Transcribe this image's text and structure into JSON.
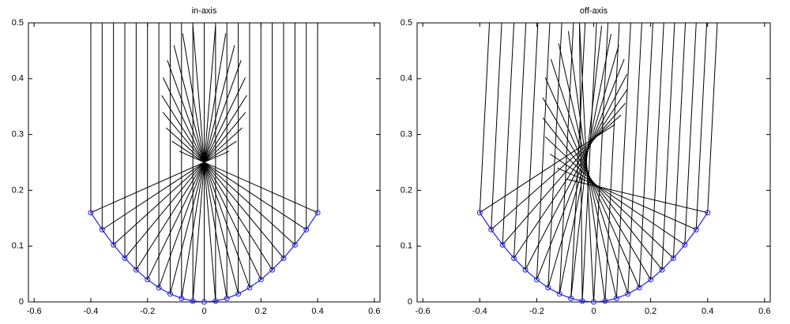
{
  "chart_data": [
    {
      "type": "line",
      "title": "in-axis",
      "xlim": [
        -0.62,
        0.62
      ],
      "ylim": [
        0,
        0.5
      ],
      "xticks": [
        -0.6,
        -0.4,
        -0.2,
        0,
        0.2,
        0.4,
        0.6
      ],
      "yticks": [
        0,
        0.1,
        0.2,
        0.3,
        0.4,
        0.5
      ],
      "mirror": {
        "color": "#2020e0",
        "x": [
          -0.4,
          -0.36,
          -0.32,
          -0.28,
          -0.24,
          -0.2,
          -0.16,
          -0.12,
          -0.08,
          -0.04,
          0,
          0.04,
          0.08,
          0.12,
          0.16,
          0.2,
          0.24,
          0.28,
          0.32,
          0.36,
          0.4
        ],
        "y": [
          0.16,
          0.1296,
          0.1024,
          0.0784,
          0.0576,
          0.04,
          0.0256,
          0.0144,
          0.0064,
          0.0016,
          0,
          0.0016,
          0.0064,
          0.0144,
          0.0256,
          0.04,
          0.0576,
          0.0784,
          0.1024,
          0.1296,
          0.16
        ]
      },
      "rays": {
        "color": "#000000",
        "items": [
          {
            "x": [
              -0.4,
              -0.4,
              0.088
            ],
            "y": [
              0.5,
              0.16,
              0.27
            ]
          },
          {
            "x": [
              -0.36,
              -0.36,
              0.114
            ],
            "y": [
              0.5,
              0.1296,
              0.288
            ]
          },
          {
            "x": [
              -0.32,
              -0.32,
              0.134
            ],
            "y": [
              0.5,
              0.1024,
              0.312
            ]
          },
          {
            "x": [
              -0.28,
              -0.28,
              0.146
            ],
            "y": [
              0.5,
              0.0784,
              0.34
            ]
          },
          {
            "x": [
              -0.24,
              -0.24,
              0.15
            ],
            "y": [
              0.5,
              0.0576,
              0.37
            ]
          },
          {
            "x": [
              -0.2,
              -0.2,
              0.145
            ],
            "y": [
              0.5,
              0.04,
              0.402
            ]
          },
          {
            "x": [
              -0.16,
              -0.16,
              0.13
            ],
            "y": [
              0.5,
              0.0256,
              0.433
            ]
          },
          {
            "x": [
              -0.12,
              -0.12,
              0.107
            ],
            "y": [
              0.5,
              0.0144,
              0.46
            ]
          },
          {
            "x": [
              -0.08,
              -0.08,
              0.076
            ],
            "y": [
              0.5,
              0.0064,
              0.481
            ]
          },
          {
            "x": [
              -0.04,
              -0.04,
              0.04
            ],
            "y": [
              0.5,
              0.0016,
              0.495
            ]
          },
          {
            "x": [
              0,
              0,
              0
            ],
            "y": [
              0.5,
              0,
              0.5
            ]
          },
          {
            "x": [
              0.04,
              0.04,
              -0.04
            ],
            "y": [
              0.5,
              0.0016,
              0.495
            ]
          },
          {
            "x": [
              0.08,
              0.08,
              -0.076
            ],
            "y": [
              0.5,
              0.0064,
              0.481
            ]
          },
          {
            "x": [
              0.12,
              0.12,
              -0.107
            ],
            "y": [
              0.5,
              0.0144,
              0.46
            ]
          },
          {
            "x": [
              0.16,
              0.16,
              -0.13
            ],
            "y": [
              0.5,
              0.0256,
              0.433
            ]
          },
          {
            "x": [
              0.2,
              0.2,
              -0.145
            ],
            "y": [
              0.5,
              0.04,
              0.402
            ]
          },
          {
            "x": [
              0.24,
              0.24,
              -0.15
            ],
            "y": [
              0.5,
              0.0576,
              0.37
            ]
          },
          {
            "x": [
              0.28,
              0.28,
              -0.146
            ],
            "y": [
              0.5,
              0.0784,
              0.34
            ]
          },
          {
            "x": [
              0.32,
              0.32,
              -0.134
            ],
            "y": [
              0.5,
              0.1024,
              0.312
            ]
          },
          {
            "x": [
              0.36,
              0.36,
              -0.114
            ],
            "y": [
              0.5,
              0.1296,
              0.288
            ]
          },
          {
            "x": [
              0.4,
              0.4,
              -0.088
            ],
            "y": [
              0.5,
              0.16,
              0.27
            ]
          }
        ]
      }
    },
    {
      "type": "line",
      "title": "off-axis",
      "xlim": [
        -0.62,
        0.62
      ],
      "ylim": [
        0,
        0.5
      ],
      "xticks": [
        -0.6,
        -0.4,
        -0.2,
        0,
        0.2,
        0.4,
        0.6
      ],
      "yticks": [
        0,
        0.1,
        0.2,
        0.3,
        0.4,
        0.5
      ],
      "mirror": {
        "color": "#2020e0",
        "x": [
          -0.4,
          -0.36,
          -0.32,
          -0.28,
          -0.24,
          -0.2,
          -0.16,
          -0.12,
          -0.08,
          -0.04,
          0,
          0.04,
          0.08,
          0.12,
          0.16,
          0.2,
          0.24,
          0.28,
          0.32,
          0.36,
          0.4
        ],
        "y": [
          0.16,
          0.1296,
          0.1024,
          0.0784,
          0.0576,
          0.04,
          0.0256,
          0.0144,
          0.0064,
          0.0016,
          0,
          0.0016,
          0.0064,
          0.0144,
          0.0256,
          0.04,
          0.0576,
          0.0784,
          0.1024,
          0.1296,
          0.16
        ]
      },
      "rays": {
        "color": "#000000",
        "items": [
          {
            "x": [
              -0.366,
              -0.4,
              0.075
            ],
            "y": [
              0.5,
              0.16,
              0.318
            ]
          },
          {
            "x": [
              -0.323,
              -0.36,
              0.096
            ],
            "y": [
              0.5,
              0.1296,
              0.335
            ]
          },
          {
            "x": [
              -0.28,
              -0.32,
              0.111
            ],
            "y": [
              0.5,
              0.1024,
              0.356
            ]
          },
          {
            "x": [
              -0.238,
              -0.28,
              0.118
            ],
            "y": [
              0.5,
              0.0784,
              0.381
            ]
          },
          {
            "x": [
              -0.196,
              -0.24,
              0.117
            ],
            "y": [
              0.5,
              0.0576,
              0.408
            ]
          },
          {
            "x": [
              -0.154,
              -0.2,
              0.107
            ],
            "y": [
              0.5,
              0.04,
              0.435
            ]
          },
          {
            "x": [
              -0.112,
              -0.16,
              0.088
            ],
            "y": [
              0.5,
              0.0256,
              0.46
            ]
          },
          {
            "x": [
              -0.071,
              -0.12,
              0.061
            ],
            "y": [
              0.5,
              0.0144,
              0.48
            ]
          },
          {
            "x": [
              -0.03,
              -0.08,
              0.028
            ],
            "y": [
              0.5,
              0.0064,
              0.495
            ]
          },
          {
            "x": [
              0.01,
              -0.04,
              -0.05
            ],
            "y": [
              0.5,
              0.0016,
              0.5
            ]
          },
          {
            "x": [
              0.05,
              0,
              -0.05
            ],
            "y": [
              0.5,
              0,
              0.499
            ]
          },
          {
            "x": [
              0.09,
              0.04,
              -0.089
            ],
            "y": [
              0.5,
              0.0016,
              0.485
            ]
          },
          {
            "x": [
              0.13,
              0.08,
              -0.123
            ],
            "y": [
              0.5,
              0.0064,
              0.463
            ]
          },
          {
            "x": [
              0.169,
              0.12,
              -0.15
            ],
            "y": [
              0.5,
              0.0144,
              0.435
            ]
          },
          {
            "x": [
              0.208,
              0.16,
              -0.17
            ],
            "y": [
              0.5,
              0.0256,
              0.402
            ]
          },
          {
            "x": [
              0.246,
              0.2,
              -0.179
            ],
            "y": [
              0.5,
              0.04,
              0.366
            ]
          },
          {
            "x": [
              0.284,
              0.24,
              -0.179
            ],
            "y": [
              0.5,
              0.0576,
              0.33
            ]
          },
          {
            "x": [
              0.322,
              0.28,
              -0.17
            ],
            "y": [
              0.5,
              0.0784,
              0.296
            ]
          },
          {
            "x": [
              0.36,
              0.32,
              -0.153
            ],
            "y": [
              0.5,
              0.1024,
              0.265
            ]
          },
          {
            "x": [
              0.397,
              0.36,
              -0.128
            ],
            "y": [
              0.5,
              0.1296,
              0.24
            ]
          },
          {
            "x": [
              0.434,
              0.4,
              -0.096
            ],
            "y": [
              0.5,
              0.16,
              0.22
            ]
          }
        ]
      }
    }
  ]
}
